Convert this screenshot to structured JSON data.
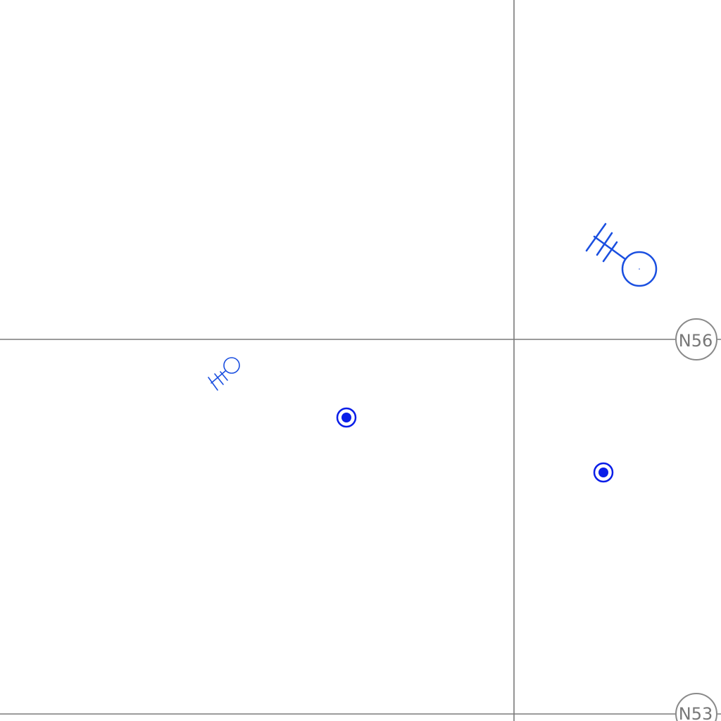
{
  "map": {
    "background_color": "#ffffff",
    "grid_color": "#7a7a7a",
    "symbol_color": "#1a4fe0",
    "station_color": "#0a1ee8",
    "grid_labels": {
      "upper": "N56",
      "lower": "N53"
    },
    "icons": {
      "wind_barb": "wind-barb-icon",
      "station": "station-marker-icon"
    },
    "wind_barbs": [
      {
        "name": "wind-barb-large",
        "barbs": 3
      },
      {
        "name": "wind-barb-small",
        "barbs": 3
      }
    ],
    "stations": [
      {
        "name": "station-marker-left"
      },
      {
        "name": "station-marker-right"
      }
    ]
  }
}
